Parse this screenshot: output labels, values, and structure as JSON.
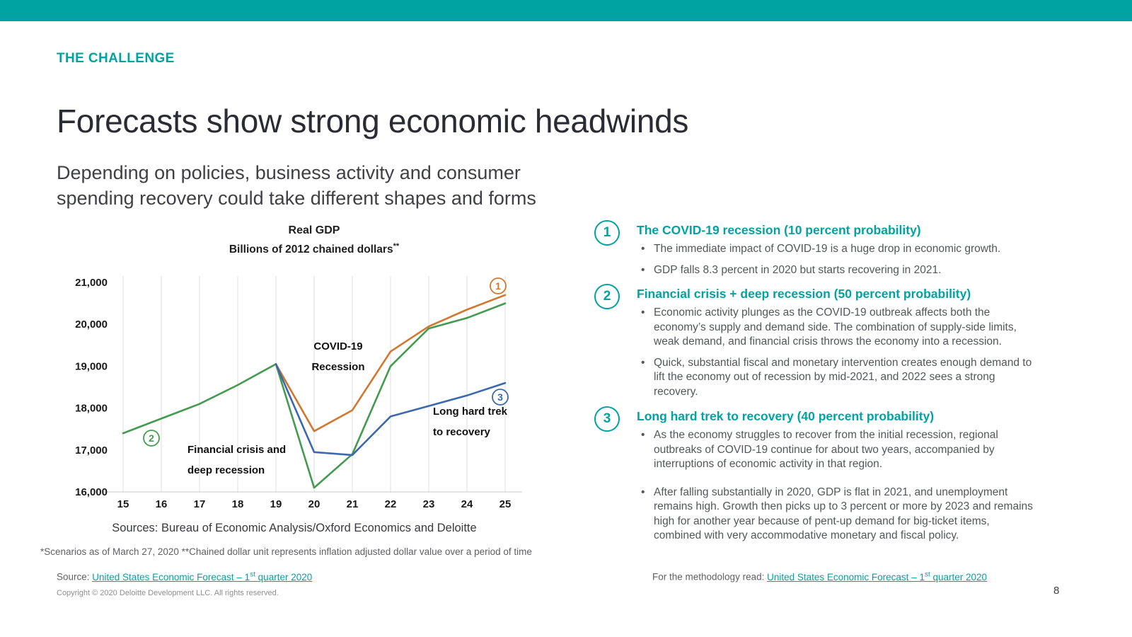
{
  "colors": {
    "accent": "#00A3A1"
  },
  "header": {
    "eyebrow": "THE CHALLENGE",
    "title": "Forecasts show strong economic headwinds",
    "subtitle": "Depending on policies, business activity and consumer spending recovery could take different shapes and forms"
  },
  "chart_data": {
    "type": "line",
    "title": "Real GDP",
    "subtitle": "Billions of 2012 chained dollars",
    "subtitle_note_marker": "**",
    "x_labels": [
      "15",
      "16",
      "17",
      "18",
      "19",
      "20",
      "21",
      "22",
      "23",
      "24",
      "25"
    ],
    "ylim": [
      16000,
      21000
    ],
    "yticks": [
      16000,
      17000,
      18000,
      19000,
      20000,
      21000
    ],
    "ytick_labels": [
      "16,000",
      "17,000",
      "18,000",
      "19,000",
      "20,000",
      "21,000"
    ],
    "grid": "vertical",
    "legend": "none",
    "series": [
      {
        "name": "The COVID-19 recession",
        "marker_label": "1",
        "color": "#D2772E",
        "values": [
          null,
          null,
          null,
          null,
          19050,
          17450,
          17950,
          19350,
          19950,
          20350,
          20700
        ]
      },
      {
        "name": "Financial crisis and deep recession",
        "marker_label": "2",
        "color": "#449B50",
        "values": [
          17400,
          17750,
          18100,
          18550,
          19050,
          16100,
          16900,
          19000,
          19900,
          20150,
          20500
        ]
      },
      {
        "name": "Long hard trek to recovery",
        "marker_label": "3",
        "color": "#3C68AE",
        "values": [
          null,
          null,
          null,
          null,
          19050,
          16950,
          16880,
          17800,
          18050,
          18300,
          18600
        ]
      }
    ],
    "annotations": [
      {
        "lines": [
          "COVID-19",
          "Recession"
        ],
        "x": 398,
        "y": 122,
        "anchor": "middle"
      },
      {
        "lines": [
          "Financial crisis and",
          "deep recession"
        ],
        "x": 185,
        "y": 268,
        "anchor": "start"
      },
      {
        "lines": [
          "Long hard trek",
          "to recovery"
        ],
        "x": 532,
        "y": 214,
        "anchor": "start"
      }
    ],
    "marker_positions": [
      {
        "series": 0,
        "x": 624,
        "y": 32
      },
      {
        "series": 1,
        "x": 134,
        "y": 247
      },
      {
        "series": 2,
        "x": 627,
        "y": 189
      }
    ]
  },
  "chart_footer": {
    "sources": "Sources: Bureau of Economic Analysis/Oxford Economics and Deloitte",
    "note": "*Scenarios as of March 27, 2020 **Chained dollar unit represents inflation adjusted dollar value over a period of time",
    "source_label": "Source: ",
    "source_link": {
      "pre": "United States Economic Forecast – 1",
      "sup": "st",
      "post": " quarter 2020"
    }
  },
  "scenarios": [
    {
      "number": "1",
      "heading": "The COVID-19 recession (10 percent probability)",
      "bullets": [
        "The immediate impact of COVID-19 is a huge drop in economic growth.",
        "GDP falls 8.3 percent in 2020 but starts recovering in 2021."
      ]
    },
    {
      "number": "2",
      "heading": "Financial crisis + deep recession (50 percent probability)",
      "bullets": [
        "Economic activity plunges as the COVID-19 outbreak affects both the economy’s supply and demand side. The combination of supply-side limits, weak demand, and financial crisis throws the economy into a recession.",
        "Quick, substantial fiscal and monetary intervention creates enough demand  to lift the economy out of recession by mid-2021, and 2022 sees a strong recovery."
      ]
    },
    {
      "number": "3",
      "heading": "Long hard trek to recovery (40 percent probability)",
      "bullets": [
        "As the economy struggles to recover from the initial recession, regional outbreaks of COVID-19 continue for about two years, accompanied by interruptions of economic activity in that region.",
        "After falling substantially in 2020, GDP is flat in 2021, and unemployment remains high. Growth then picks up to 3 percent or more by 2023 and remains high for another year because of pent-up demand for big-ticket items, combined with very accommodative monetary and fiscal policy."
      ]
    }
  ],
  "methodology": {
    "label": "For the methodology read: ",
    "link": {
      "pre": "United States Economic Forecast – 1",
      "sup": "st",
      "post": " quarter 2020"
    }
  },
  "footer": {
    "copyright": "Copyright © 2020 Deloitte Development LLC. All rights reserved.",
    "page_number": "8"
  }
}
